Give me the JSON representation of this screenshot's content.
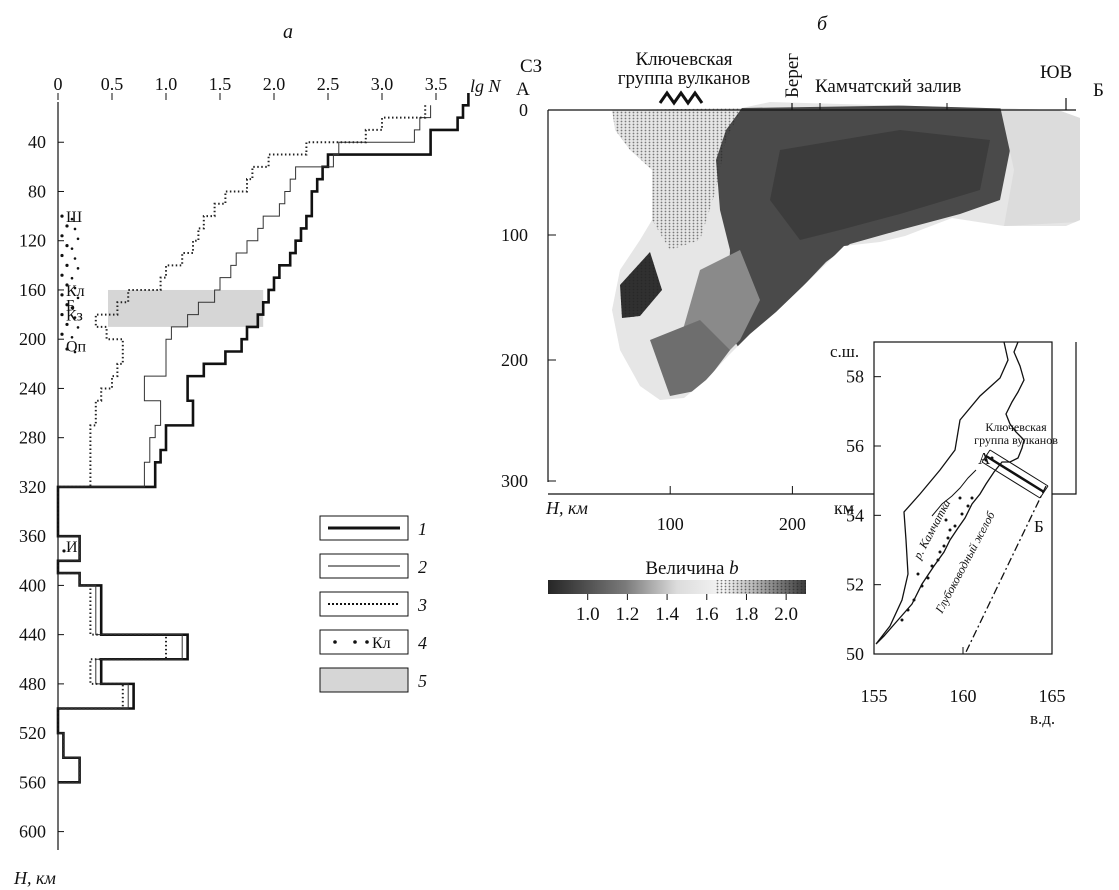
{
  "panel_a": {
    "letter": "а",
    "x_unit": "lg N",
    "y_unit": "H, км",
    "layer_markers": [
      {
        "label": "Ш",
        "h": 100
      },
      {
        "label": "Кл",
        "h": 160
      },
      {
        "label": "Б",
        "h": 172
      },
      {
        "label": "Кз",
        "h": 180
      },
      {
        "label": "Оп",
        "h": 205
      },
      {
        "label": "И",
        "h": 368
      }
    ],
    "legend": [
      {
        "id": "1",
        "label": "1"
      },
      {
        "id": "2",
        "label": "2"
      },
      {
        "id": "3",
        "label": "3"
      },
      {
        "id": "4",
        "label": "4",
        "text": "Кл"
      },
      {
        "id": "5",
        "label": "5"
      }
    ]
  },
  "panel_b": {
    "letter": "б",
    "labels": {
      "nw": "СЗ",
      "a": "А",
      "volcanoes": "Ключевская группа вулканов",
      "coast": "Берег",
      "gulf": "Камчатский залив",
      "se": "ЮВ",
      "b": "Б",
      "ylabel": "H, км",
      "xunit": "км",
      "colorbar_title": "Величина b"
    }
  },
  "inset": {
    "lat_label": "с.ш.",
    "lon_label": "в.д.",
    "volcano_label_1": "Ключевская",
    "volcano_label_2": "группа вулканов",
    "a": "А",
    "b": "Б",
    "river": "р. Камчатка",
    "trench": "Глубоководный желоб"
  },
  "chart_data": [
    {
      "type": "line",
      "panel": "а",
      "xlabel": "lg N",
      "ylabel": "H, км",
      "xlim": [
        0,
        3.8
      ],
      "ylim": [
        600,
        0
      ],
      "x_ticks": [
        0,
        0.5,
        1.0,
        1.5,
        2.0,
        2.5,
        3.0,
        3.5
      ],
      "x_tick_labels": [
        "0",
        "0.5",
        "1.0",
        "1.5",
        "2.0",
        "2.5",
        "3.0",
        "3.5"
      ],
      "y_ticks": [
        40,
        80,
        120,
        160,
        200,
        240,
        280,
        320,
        360,
        400,
        440,
        480,
        520,
        560,
        600
      ],
      "shaded_band": {
        "series": "5",
        "x": [
          0,
          1.9
        ],
        "y": [
          160,
          190
        ]
      },
      "series": [
        {
          "name": "1",
          "style": "thick",
          "step_depths": [
            0,
            320,
            330,
            340,
            360,
            370,
            380,
            390,
            400,
            410,
            420,
            430,
            440,
            450,
            460,
            470,
            480,
            490,
            500,
            510,
            520,
            530,
            540,
            550,
            560
          ],
          "points": [
            [
              3.8,
              0
            ],
            [
              3.75,
              10
            ],
            [
              3.7,
              20
            ],
            [
              3.45,
              30
            ],
            [
              3.45,
              40
            ],
            [
              2.5,
              50
            ],
            [
              2.45,
              60
            ],
            [
              2.4,
              70
            ],
            [
              2.35,
              80
            ],
            [
              2.35,
              90
            ],
            [
              2.3,
              100
            ],
            [
              2.25,
              110
            ],
            [
              2.2,
              120
            ],
            [
              2.15,
              130
            ],
            [
              2.05,
              140
            ],
            [
              2.0,
              150
            ],
            [
              1.95,
              160
            ],
            [
              1.9,
              170
            ],
            [
              1.85,
              180
            ],
            [
              1.75,
              190
            ],
            [
              1.7,
              200
            ],
            [
              1.55,
              210
            ],
            [
              1.35,
              220
            ],
            [
              1.2,
              230
            ],
            [
              1.2,
              240
            ],
            [
              1.25,
              250
            ],
            [
              1.25,
              260
            ],
            [
              1.0,
              270
            ],
            [
              1.0,
              280
            ],
            [
              0.95,
              290
            ],
            [
              0.9,
              300
            ],
            [
              0.9,
              310
            ],
            [
              0,
              320
            ],
            [
              0,
              330
            ],
            [
              0,
              340
            ],
            [
              0,
              350
            ],
            [
              0.2,
              360
            ],
            [
              0.2,
              370
            ],
            [
              0,
              380
            ],
            [
              0.2,
              390
            ],
            [
              0.4,
              400
            ],
            [
              0.4,
              410
            ],
            [
              0.4,
              420
            ],
            [
              0.4,
              430
            ],
            [
              1.2,
              440
            ],
            [
              1.2,
              450
            ],
            [
              0.4,
              460
            ],
            [
              0.4,
              470
            ],
            [
              0.7,
              480
            ],
            [
              0.7,
              490
            ],
            [
              0,
              500
            ],
            [
              0,
              510
            ],
            [
              0.05,
              520
            ],
            [
              0.05,
              530
            ],
            [
              0.2,
              540
            ],
            [
              0.2,
              550
            ],
            [
              0,
              560
            ]
          ]
        },
        {
          "name": "2",
          "style": "thin",
          "points": [
            [
              3.45,
              10
            ],
            [
              3.35,
              20
            ],
            [
              3.3,
              30
            ],
            [
              2.6,
              40
            ],
            [
              2.55,
              50
            ],
            [
              2.2,
              60
            ],
            [
              2.15,
              70
            ],
            [
              2.1,
              80
            ],
            [
              2.05,
              90
            ],
            [
              1.9,
              100
            ],
            [
              1.85,
              110
            ],
            [
              1.75,
              120
            ],
            [
              1.65,
              130
            ],
            [
              1.6,
              140
            ],
            [
              1.5,
              150
            ],
            [
              1.45,
              160
            ],
            [
              1.3,
              170
            ],
            [
              1.2,
              180
            ],
            [
              1.05,
              190
            ],
            [
              1.0,
              200
            ],
            [
              1.0,
              210
            ],
            [
              1.0,
              220
            ],
            [
              0.8,
              230
            ],
            [
              0.8,
              240
            ],
            [
              0.95,
              250
            ],
            [
              0.95,
              260
            ],
            [
              0.9,
              270
            ],
            [
              0.85,
              280
            ],
            [
              0.85,
              290
            ],
            [
              0.8,
              300
            ],
            [
              0.8,
              310
            ],
            [
              0,
              320
            ],
            [
              0,
              340
            ],
            [
              0.2,
              360
            ],
            [
              0.2,
              370
            ],
            [
              0,
              380
            ],
            [
              0.2,
              390
            ],
            [
              0.35,
              400
            ],
            [
              0.35,
              410
            ],
            [
              0.35,
              420
            ],
            [
              0.35,
              430
            ],
            [
              1.15,
              440
            ],
            [
              1.15,
              450
            ],
            [
              0.35,
              460
            ],
            [
              0.35,
              470
            ],
            [
              0.65,
              480
            ],
            [
              0.65,
              490
            ],
            [
              0,
              500
            ],
            [
              0,
              510
            ],
            [
              0.05,
              520
            ],
            [
              0.05,
              530
            ],
            [
              0.2,
              540
            ],
            [
              0.2,
              550
            ],
            [
              0,
              560
            ]
          ]
        },
        {
          "name": "3",
          "style": "dotted",
          "points": [
            [
              3.4,
              10
            ],
            [
              3.0,
              20
            ],
            [
              2.85,
              30
            ],
            [
              2.3,
              40
            ],
            [
              1.95,
              50
            ],
            [
              1.8,
              60
            ],
            [
              1.75,
              70
            ],
            [
              1.55,
              80
            ],
            [
              1.45,
              90
            ],
            [
              1.35,
              100
            ],
            [
              1.3,
              110
            ],
            [
              1.25,
              120
            ],
            [
              1.15,
              130
            ],
            [
              1.0,
              140
            ],
            [
              0.95,
              150
            ],
            [
              0.65,
              160
            ],
            [
              0.55,
              170
            ],
            [
              0.35,
              180
            ],
            [
              0.45,
              190
            ],
            [
              0.6,
              200
            ],
            [
              0.6,
              210
            ],
            [
              0.55,
              220
            ],
            [
              0.5,
              230
            ],
            [
              0.4,
              240
            ],
            [
              0.35,
              250
            ],
            [
              0.35,
              260
            ],
            [
              0.3,
              270
            ],
            [
              0.3,
              280
            ],
            [
              0.3,
              290
            ],
            [
              0.3,
              300
            ],
            [
              0.3,
              310
            ],
            [
              0,
              320
            ],
            [
              0,
              340
            ],
            [
              0.2,
              360
            ],
            [
              0.2,
              370
            ],
            [
              0,
              380
            ],
            [
              0.2,
              390
            ],
            [
              0.3,
              400
            ],
            [
              0.3,
              410
            ],
            [
              0.3,
              420
            ],
            [
              0.3,
              430
            ],
            [
              1.0,
              440
            ],
            [
              1.0,
              450
            ],
            [
              0.3,
              460
            ],
            [
              0.3,
              470
            ],
            [
              0.6,
              480
            ],
            [
              0.6,
              490
            ],
            [
              0,
              500
            ],
            [
              0,
              510
            ],
            [
              0.05,
              520
            ],
            [
              0.05,
              530
            ],
            [
              0.2,
              540
            ],
            [
              0.2,
              550
            ],
            [
              0,
              560
            ]
          ]
        }
      ]
    },
    {
      "type": "heatmap",
      "panel": "б",
      "xlabel": "км",
      "ylabel": "H, км",
      "xlim": [
        0,
        220
      ],
      "ylim": [
        300,
        0
      ],
      "x_ticks": [
        100,
        200
      ],
      "y_ticks": [
        0,
        100,
        200,
        300
      ],
      "colorbar": {
        "title": "Величина b",
        "ticks": [
          1.0,
          1.2,
          1.4,
          1.6,
          1.8,
          2.0
        ],
        "range": [
          0.8,
          2.1
        ]
      }
    },
    {
      "type": "map",
      "panel": "inset",
      "xlim": [
        155,
        165
      ],
      "ylim": [
        50,
        59
      ],
      "x_ticks": [
        155,
        160,
        165
      ],
      "y_ticks": [
        50,
        52,
        54,
        56,
        58
      ]
    }
  ]
}
